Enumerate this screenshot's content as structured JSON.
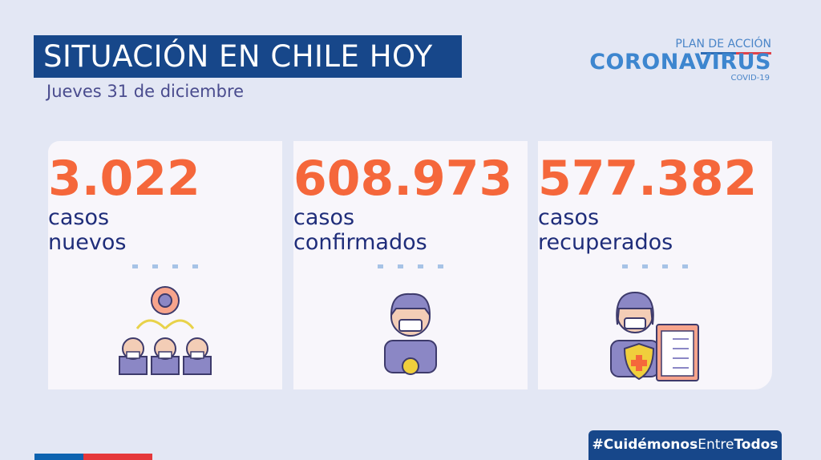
{
  "header": {
    "title": "SITUACIÓN EN CHILE HOY",
    "date": "Jueves 31 de diciembre"
  },
  "logo": {
    "plan": "PLAN DE ACCIÓN",
    "brand": "CORONAVIRUS",
    "sub": "COVID-19"
  },
  "cards": [
    {
      "value": "3.022",
      "line1": "casos",
      "line2": "nuevos",
      "icon": "people-spread-virus-icon"
    },
    {
      "value": "608.973",
      "line1": "casos",
      "line2": "confirmados",
      "icon": "masked-person-virus-icon"
    },
    {
      "value": "577.382",
      "line1": "casos",
      "line2": "recuperados",
      "icon": "masked-person-clipboard-shield-icon"
    }
  ],
  "footer": {
    "hashtag_a": "#Cuidémonos",
    "hashtag_b": "Entre",
    "hashtag_c": "Todos"
  },
  "colors": {
    "accent": "#f5673b",
    "navy": "#17478a",
    "background": "#e3e7f4"
  }
}
